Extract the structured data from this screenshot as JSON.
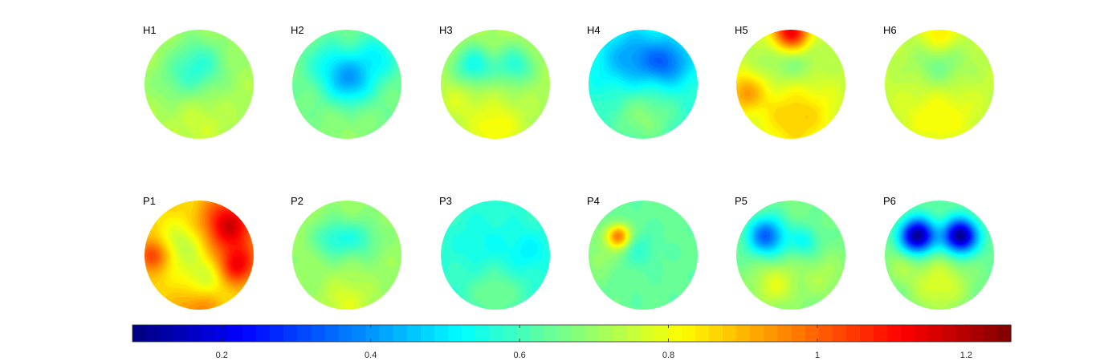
{
  "chart_data": {
    "type": "heatmap",
    "subtype": "topographic-scalp-maps",
    "colormap": "jet",
    "colorbar": {
      "orientation": "horizontal",
      "placement": "bottom",
      "range": [
        0.08,
        1.26
      ],
      "ticks": [
        "0.2",
        "0.4",
        "0.6",
        "0.8",
        "1",
        "1.2"
      ],
      "tick_values": [
        0.2,
        0.4,
        0.6,
        0.8,
        1.0,
        1.2
      ],
      "levels": 64
    },
    "maps": [
      {
        "label": "H1",
        "base": 0.72,
        "features": [
          {
            "u": 0.0,
            "v": -0.35,
            "r": 0.35,
            "a": -0.14
          },
          {
            "u": -0.45,
            "v": -0.05,
            "r": 0.3,
            "a": -0.05
          },
          {
            "u": 0.0,
            "v": 0.75,
            "r": 0.35,
            "a": 0.04
          }
        ]
      },
      {
        "label": "H2",
        "base": 0.66,
        "features": [
          {
            "u": 0.05,
            "v": -0.05,
            "r": 0.3,
            "a": -0.22
          },
          {
            "u": -0.35,
            "v": -0.4,
            "r": 0.3,
            "a": -0.1
          },
          {
            "u": 0.55,
            "v": -0.5,
            "r": 0.3,
            "a": -0.13
          },
          {
            "u": 0.0,
            "v": 0.8,
            "r": 0.35,
            "a": 0.03
          }
        ]
      },
      {
        "label": "H3",
        "base": 0.72,
        "features": [
          {
            "u": -0.4,
            "v": -0.35,
            "r": 0.25,
            "a": -0.18
          },
          {
            "u": 0.35,
            "v": -0.35,
            "r": 0.25,
            "a": -0.15
          },
          {
            "u": 0.0,
            "v": 0.8,
            "r": 0.35,
            "a": 0.1
          },
          {
            "u": -0.7,
            "v": 0.3,
            "r": 0.25,
            "a": 0.05
          }
        ]
      },
      {
        "label": "H4",
        "base": 0.56,
        "features": [
          {
            "u": -0.2,
            "v": -0.45,
            "r": 0.4,
            "a": -0.15
          },
          {
            "u": 0.45,
            "v": -0.4,
            "r": 0.3,
            "a": -0.18
          },
          {
            "u": 0.0,
            "v": 0.6,
            "r": 0.45,
            "a": 0.12
          }
        ]
      },
      {
        "label": "H5",
        "base": 0.74,
        "features": [
          {
            "u": 0.0,
            "v": -0.95,
            "r": 0.25,
            "a": 0.42
          },
          {
            "u": 0.0,
            "v": -0.45,
            "r": 0.35,
            "a": -0.1
          },
          {
            "u": 0.1,
            "v": 0.6,
            "r": 0.5,
            "a": 0.14
          },
          {
            "u": -0.85,
            "v": 0.15,
            "r": 0.25,
            "a": 0.18
          }
        ]
      },
      {
        "label": "H6",
        "base": 0.74,
        "features": [
          {
            "u": 0.0,
            "v": -0.35,
            "r": 0.35,
            "a": -0.1
          },
          {
            "u": 0.0,
            "v": -0.9,
            "r": 0.25,
            "a": 0.12
          },
          {
            "u": 0.0,
            "v": 0.55,
            "r": 0.5,
            "a": 0.08
          }
        ]
      },
      {
        "label": "P1",
        "base": 0.86,
        "features": [
          {
            "u": 0.55,
            "v": -0.55,
            "r": 0.35,
            "a": 0.3
          },
          {
            "u": 0.7,
            "v": 0.2,
            "r": 0.25,
            "a": 0.25
          },
          {
            "u": -0.85,
            "v": 0.0,
            "r": 0.2,
            "a": 0.2
          },
          {
            "u": -0.3,
            "v": -0.2,
            "r": 0.3,
            "a": -0.12
          },
          {
            "u": 0.1,
            "v": 0.45,
            "r": 0.3,
            "a": -0.12
          },
          {
            "u": 0.0,
            "v": 0.95,
            "r": 0.3,
            "a": 0.12
          }
        ]
      },
      {
        "label": "P2",
        "base": 0.7,
        "features": [
          {
            "u": -0.25,
            "v": -0.3,
            "r": 0.25,
            "a": -0.13
          },
          {
            "u": 0.25,
            "v": -0.3,
            "r": 0.25,
            "a": -0.1
          },
          {
            "u": 0.0,
            "v": 0.85,
            "r": 0.3,
            "a": 0.08
          }
        ]
      },
      {
        "label": "P3",
        "base": 0.58,
        "features": [
          {
            "u": 0.6,
            "v": -0.05,
            "r": 0.3,
            "a": -0.06
          },
          {
            "u": 0.0,
            "v": 0.7,
            "r": 0.35,
            "a": 0.08
          },
          {
            "u": -0.2,
            "v": -0.2,
            "r": 0.4,
            "a": -0.04
          }
        ]
      },
      {
        "label": "P4",
        "base": 0.64,
        "features": [
          {
            "u": -0.45,
            "v": -0.35,
            "r": 0.15,
            "a": 0.33
          },
          {
            "u": -0.1,
            "v": -0.1,
            "r": 0.25,
            "a": -0.06
          },
          {
            "u": -0.8,
            "v": 0.0,
            "r": 0.3,
            "a": 0.06
          }
        ]
      },
      {
        "label": "P5",
        "base": 0.66,
        "features": [
          {
            "u": -0.45,
            "v": -0.35,
            "r": 0.25,
            "a": -0.32
          },
          {
            "u": 0.25,
            "v": -0.25,
            "r": 0.2,
            "a": -0.12
          },
          {
            "u": -0.3,
            "v": 0.55,
            "r": 0.3,
            "a": 0.12
          },
          {
            "u": 0.6,
            "v": 0.4,
            "r": 0.3,
            "a": 0.06
          }
        ]
      },
      {
        "label": "P6",
        "base": 0.64,
        "features": [
          {
            "u": -0.4,
            "v": -0.35,
            "r": 0.22,
            "a": -0.55
          },
          {
            "u": 0.38,
            "v": -0.35,
            "r": 0.22,
            "a": -0.55
          },
          {
            "u": 0.0,
            "v": 0.55,
            "r": 0.4,
            "a": 0.14
          },
          {
            "u": -0.75,
            "v": 0.2,
            "r": 0.25,
            "a": 0.06
          }
        ]
      }
    ]
  }
}
